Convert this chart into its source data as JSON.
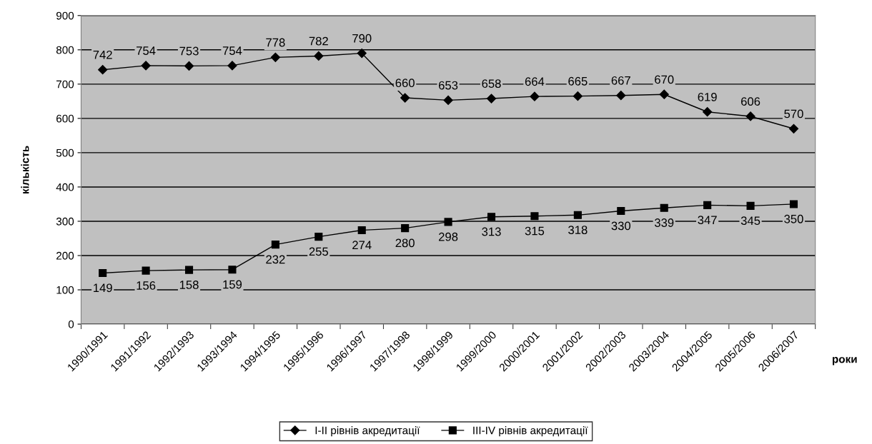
{
  "chart_data": {
    "type": "line",
    "xlabel": "роки",
    "ylabel": "кількість",
    "categories": [
      "1990/1991",
      "1991/1992",
      "1992/1993",
      "1993/1994",
      "1994/1995",
      "1995/1996",
      "1996/1997",
      "1997/1998",
      "1998/1999",
      "1999/2000",
      "2000/2001",
      "2001/2002",
      "2002/2003",
      "2003/2004",
      "2004/2005",
      "2005/2006",
      "2006/2007"
    ],
    "series": [
      {
        "name": "I-II рівнів акредитації",
        "color": "#000000",
        "marker": "diamond",
        "values": [
          742,
          754,
          753,
          754,
          778,
          782,
          790,
          660,
          653,
          658,
          664,
          665,
          667,
          670,
          619,
          606,
          570
        ]
      },
      {
        "name": "III-IV рівнів акредитації",
        "color": "#000000",
        "marker": "square",
        "values": [
          149,
          156,
          158,
          159,
          232,
          255,
          274,
          280,
          298,
          313,
          315,
          318,
          330,
          339,
          347,
          345,
          350
        ]
      }
    ],
    "ylim": [
      0,
      900
    ],
    "yticks": [
      0,
      100,
      200,
      300,
      400,
      500,
      600,
      700,
      800,
      900
    ],
    "grid": "y",
    "legend": "bottom",
    "data_labels": true,
    "line_style": "solid"
  }
}
